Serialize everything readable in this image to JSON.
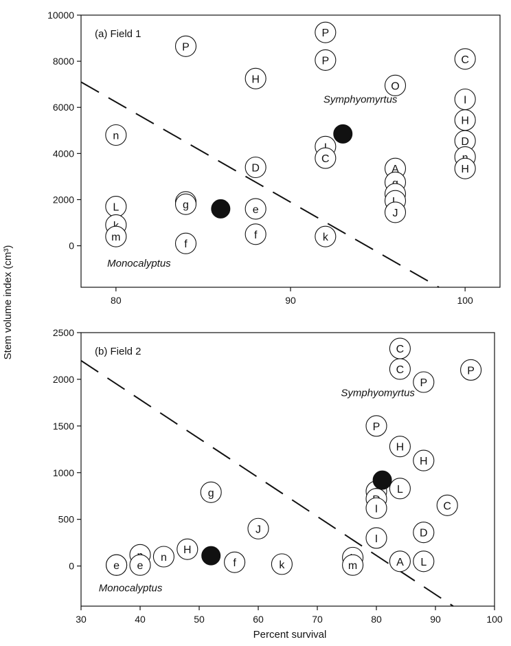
{
  "figure": {
    "ylabel": "Stem volume index (cm³)",
    "xlabel": "Percent survival"
  },
  "chart_data": [
    {
      "type": "scatter",
      "panel_label": "(a)  Field 1",
      "xlim": [
        78,
        102
      ],
      "ylim": [
        -1800,
        10000
      ],
      "xticks": [
        80,
        90,
        100
      ],
      "yticks": [
        0,
        2000,
        4000,
        6000,
        8000,
        10000
      ],
      "annotations": [
        {
          "text": "Symphyomyrtus",
          "x": 94,
          "y": 6200
        },
        {
          "text": "Monocalyptus",
          "x": 79.5,
          "y": -900
        }
      ],
      "divider": {
        "style": "dashed",
        "x": [
          78,
          98.5
        ],
        "y": [
          7100,
          -1800
        ]
      },
      "points": [
        {
          "label": "P",
          "x": 84,
          "y": 8650
        },
        {
          "label": "P",
          "x": 92,
          "y": 9250
        },
        {
          "label": "P",
          "x": 92,
          "y": 8050
        },
        {
          "label": "H",
          "x": 88,
          "y": 7250
        },
        {
          "label": "O",
          "x": 96,
          "y": 6950
        },
        {
          "label": "C",
          "x": 100,
          "y": 8100
        },
        {
          "label": "I",
          "x": 100,
          "y": 6350
        },
        {
          "label": "H",
          "x": 100,
          "y": 5450
        },
        {
          "label": "D",
          "x": 100,
          "y": 4550
        },
        {
          "label": "n",
          "x": 100,
          "y": 3850
        },
        {
          "label": "H",
          "x": 100,
          "y": 3350
        },
        {
          "label": "n",
          "x": 80,
          "y": 4800
        },
        {
          "label": "I",
          "x": 92,
          "y": 4300
        },
        {
          "label": "C",
          "x": 92,
          "y": 3800
        },
        {
          "label": "D",
          "x": 88,
          "y": 3400
        },
        {
          "label": "A",
          "x": 96,
          "y": 3350
        },
        {
          "label": "g",
          "x": 96,
          "y": 2750
        },
        {
          "label": "A",
          "x": 96,
          "y": 2250
        },
        {
          "label": "L",
          "x": 96,
          "y": 1950
        },
        {
          "label": "J",
          "x": 96,
          "y": 1450
        },
        {
          "label": "L",
          "x": 80,
          "y": 1700
        },
        {
          "label": "k",
          "x": 80,
          "y": 900
        },
        {
          "label": "m",
          "x": 80,
          "y": 400
        },
        {
          "label": "g",
          "x": 84,
          "y": 1900
        },
        {
          "label": "g",
          "x": 84,
          "y": 1800
        },
        {
          "label": "e",
          "x": 88,
          "y": 1600
        },
        {
          "label": "f",
          "x": 88,
          "y": 500
        },
        {
          "label": "f",
          "x": 84,
          "y": 100
        },
        {
          "label": "k",
          "x": 92,
          "y": 400
        }
      ],
      "means": [
        {
          "x": 93,
          "y": 4850
        },
        {
          "x": 86,
          "y": 1600
        }
      ]
    },
    {
      "type": "scatter",
      "panel_label": "(b)  Field 2",
      "xlim": [
        30,
        100
      ],
      "ylim": [
        -430,
        2500
      ],
      "xticks": [
        30,
        40,
        50,
        60,
        70,
        80,
        90,
        100
      ],
      "yticks": [
        0,
        500,
        1000,
        1500,
        2000,
        2500
      ],
      "annotations": [
        {
          "text": "Symphyomyrtus",
          "x": 74,
          "y": 1820
        },
        {
          "text": "Monocalyptus",
          "x": 33,
          "y": -270
        }
      ],
      "divider": {
        "style": "dashed",
        "x": [
          30,
          93
        ],
        "y": [
          2200,
          -430
        ]
      },
      "points": [
        {
          "label": "C",
          "x": 84,
          "y": 2330
        },
        {
          "label": "C",
          "x": 84,
          "y": 2110
        },
        {
          "label": "P",
          "x": 88,
          "y": 1970
        },
        {
          "label": "P",
          "x": 96,
          "y": 2100
        },
        {
          "label": "P",
          "x": 80,
          "y": 1500
        },
        {
          "label": "H",
          "x": 84,
          "y": 1280
        },
        {
          "label": "H",
          "x": 88,
          "y": 1130
        },
        {
          "label": "L",
          "x": 84,
          "y": 830
        },
        {
          "label": "O",
          "x": 80,
          "y": 800
        },
        {
          "label": "D",
          "x": 80,
          "y": 720
        },
        {
          "label": "I",
          "x": 80,
          "y": 620
        },
        {
          "label": "C",
          "x": 92,
          "y": 650
        },
        {
          "label": "D",
          "x": 88,
          "y": 360
        },
        {
          "label": "I",
          "x": 80,
          "y": 300
        },
        {
          "label": "A",
          "x": 84,
          "y": 50
        },
        {
          "label": "L",
          "x": 88,
          "y": 50
        },
        {
          "label": "k",
          "x": 76,
          "y": 90
        },
        {
          "label": "m",
          "x": 76,
          "y": 10
        },
        {
          "label": "g",
          "x": 52,
          "y": 790
        },
        {
          "label": "J",
          "x": 60,
          "y": 400
        },
        {
          "label": "H",
          "x": 48,
          "y": 180
        },
        {
          "label": "n",
          "x": 44,
          "y": 100
        },
        {
          "label": "n",
          "x": 40,
          "y": 120
        },
        {
          "label": "e",
          "x": 40,
          "y": 10
        },
        {
          "label": "f",
          "x": 36,
          "y": 10
        },
        {
          "label": "e",
          "x": 36,
          "y": 10
        },
        {
          "label": "f",
          "x": 56,
          "y": 40
        },
        {
          "label": "k",
          "x": 64,
          "y": 20
        }
      ],
      "means": [
        {
          "x": 81,
          "y": 920
        },
        {
          "x": 52,
          "y": 110
        }
      ]
    }
  ]
}
